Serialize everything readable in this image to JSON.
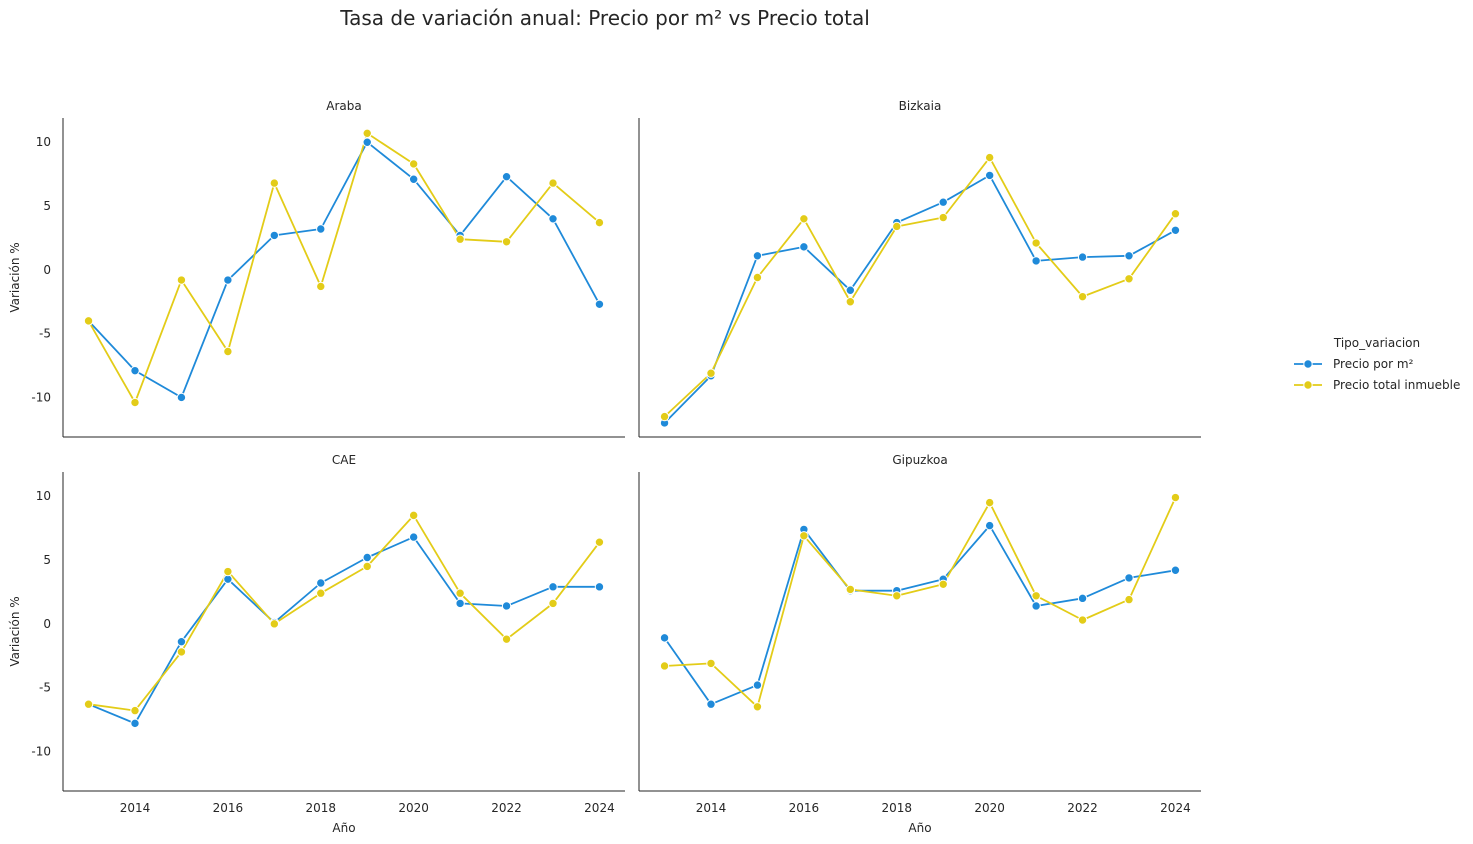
{
  "title": "Tasa de variación anual: Precio por m² vs Precio total",
  "chart_data": {
    "type": "line",
    "title": "Tasa de variación anual: Precio por m² vs Precio total",
    "xlabel": "Año",
    "ylabel": "Variación %",
    "x": [
      2013,
      2014,
      2015,
      2016,
      2017,
      2018,
      2019,
      2020,
      2021,
      2022,
      2023,
      2024
    ],
    "xticks": [
      2014,
      2016,
      2018,
      2020,
      2022,
      2024
    ],
    "yticks": [
      -10,
      -5,
      0,
      5,
      10
    ],
    "xlim": [
      2012.45,
      2024.55
    ],
    "ylim": [
      -13.1,
      11.9
    ],
    "grid": false,
    "legend": {
      "title": "Tipo_variacion",
      "placement": "right",
      "entries": [
        "Precio por m²",
        "Precio total inmueble"
      ]
    },
    "colors": {
      "Precio por m²": "#1f8ad9",
      "Precio total inmueble": "#e3cc18"
    },
    "panels": [
      {
        "title": "Araba",
        "series": [
          {
            "name": "Precio por m²",
            "values": [
              -4.0,
              -7.9,
              -10.0,
              -0.8,
              2.7,
              3.2,
              10.0,
              7.1,
              2.7,
              7.3,
              4.0,
              -2.7
            ]
          },
          {
            "name": "Precio total inmueble",
            "values": [
              -4.0,
              -10.4,
              -0.8,
              -6.4,
              6.8,
              -1.3,
              10.7,
              8.3,
              2.4,
              2.2,
              6.8,
              3.7
            ]
          }
        ]
      },
      {
        "title": "Bizkaia",
        "series": [
          {
            "name": "Precio por m²",
            "values": [
              -12.0,
              -8.3,
              1.1,
              1.8,
              -1.6,
              3.7,
              5.3,
              7.4,
              0.7,
              1.0,
              1.1,
              3.1
            ]
          },
          {
            "name": "Precio total inmueble",
            "values": [
              -11.5,
              -8.1,
              -0.6,
              4.0,
              -2.5,
              3.4,
              4.1,
              8.8,
              2.1,
              -2.1,
              -0.7,
              4.4
            ]
          }
        ]
      },
      {
        "title": "CAE",
        "series": [
          {
            "name": "Precio por m²",
            "values": [
              -6.3,
              -7.8,
              -1.4,
              3.5,
              0.1,
              3.2,
              5.2,
              6.8,
              1.6,
              1.4,
              2.9,
              2.9
            ]
          },
          {
            "name": "Precio total inmueble",
            "values": [
              -6.3,
              -6.8,
              -2.2,
              4.1,
              0.0,
              2.4,
              4.5,
              8.5,
              2.4,
              -1.2,
              1.6,
              6.4
            ]
          }
        ]
      },
      {
        "title": "Gipuzkoa",
        "series": [
          {
            "name": "Precio por m²",
            "values": [
              -1.1,
              -6.3,
              -4.8,
              7.4,
              2.6,
              2.6,
              3.5,
              7.7,
              1.4,
              2.0,
              3.6,
              4.2
            ]
          },
          {
            "name": "Precio total inmueble",
            "values": [
              -3.3,
              -3.1,
              -6.5,
              6.9,
              2.7,
              2.2,
              3.1,
              9.5,
              2.2,
              0.3,
              1.9,
              9.9
            ]
          }
        ]
      }
    ]
  }
}
